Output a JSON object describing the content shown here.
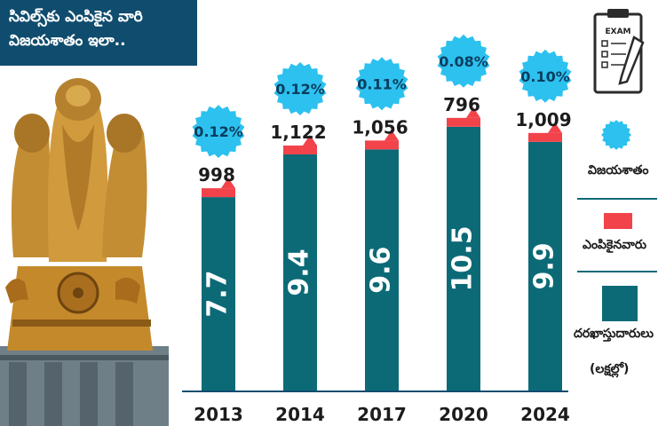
{
  "title_lines": [
    "సివిల్స్‌కు ఎంపికైన వారి",
    "విజయశాతం ఇలా.."
  ],
  "colors": {
    "bar": "#0c6a77",
    "bar_dark": "#083f4a",
    "selected": "#f2434b",
    "percent": "#2cc1ef",
    "title_bg": "#0f4c6e"
  },
  "icon": {
    "name": "exam-clipboard-icon",
    "label": "EXAM"
  },
  "emblem": {
    "name": "lion-capital-emblem"
  },
  "legend": {
    "percent_label": "విజయశాతం",
    "selected_label": "ఎంపికైనవారు",
    "applicants_label": "దరఖాస్తుదారులు",
    "applicants_unit": "(లక్షల్లో)"
  },
  "chart_data": {
    "type": "bar",
    "categories": [
      "2013",
      "2014",
      "2017",
      "2020",
      "2024"
    ],
    "series": [
      {
        "name": "దరఖాస్తుదారులు",
        "values": [
          7.7,
          9.4,
          9.6,
          10.5,
          9.9
        ],
        "labels": [
          "7.7",
          "9.4",
          "9.6",
          "10.5",
          "9.9"
        ]
      },
      {
        "name": "ఎంపికైనవారు",
        "values": [
          998,
          1122,
          1056,
          796,
          1009
        ],
        "labels": [
          "998",
          "1,122",
          "1,056",
          "796",
          "1,009"
        ]
      },
      {
        "name": "విజయశాతం",
        "values": [
          0.12,
          0.12,
          0.11,
          0.08,
          0.1
        ],
        "labels": [
          "0.12%",
          "0.12%",
          "0.11%",
          "0.08%",
          "0.10%"
        ]
      }
    ],
    "ylim": [
      0,
      12
    ]
  }
}
